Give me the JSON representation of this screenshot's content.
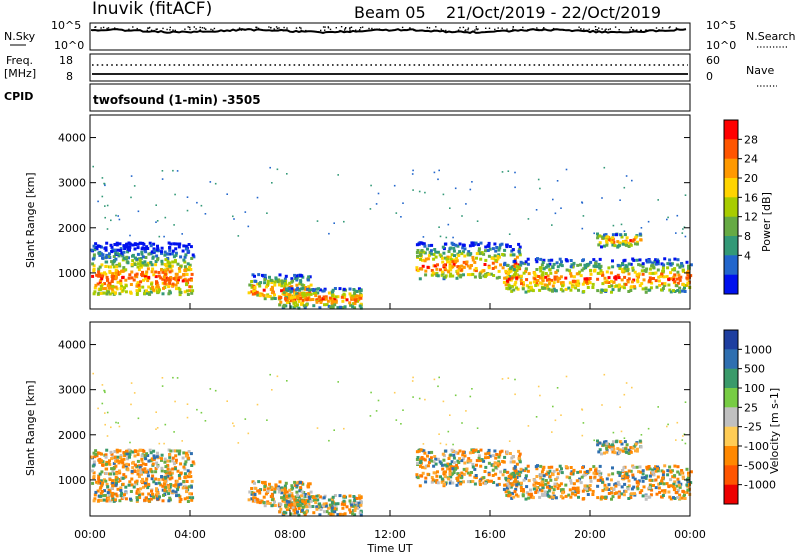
{
  "header": {
    "station": "Inuvik (fitACF)",
    "beam": "Beam 05",
    "date_range": "21/Oct/2019 - 22/Oct/2019"
  },
  "chart_data": [
    {
      "type": "line",
      "left_label": "N.Sky",
      "right_label": "N.Search",
      "left_ticks": [
        "10^5",
        "10^0"
      ],
      "right_ticks": [
        "10^5",
        "10^0"
      ]
    },
    {
      "type": "scatter",
      "left_label": "Freq.",
      "left_unit": "[MHz]",
      "right_label": "Nave",
      "left_ticks": [
        "18",
        "8"
      ],
      "right_ticks": [
        "60",
        "0"
      ],
      "cpid_label": "CPID",
      "program_label": "twofsound (1-min) -3505"
    },
    {
      "type": "heatmap",
      "ylabel": "Slant Range [km]",
      "y_ticks": [
        "4000",
        "3000",
        "2000",
        "1000"
      ],
      "ylim": [
        200,
        4500
      ],
      "colorbar_label": "Power [dB]",
      "colorbar_ticks": [
        "28",
        "24",
        "20",
        "16",
        "12",
        "8",
        "4"
      ],
      "colorbar_colors": [
        "#ff0000",
        "#ff5500",
        "#ff9900",
        "#ffd400",
        "#a8cc00",
        "#66aa44",
        "#339977",
        "#2266cc",
        "#0011ee"
      ]
    },
    {
      "type": "heatmap",
      "ylabel": "Slant Range [km]",
      "y_ticks": [
        "4000",
        "3000",
        "2000",
        "1000"
      ],
      "ylim": [
        200,
        4500
      ],
      "colorbar_label": "Velocity [m s-1]",
      "colorbar_ticks": [
        "1000",
        "500",
        "100",
        "25",
        "-25",
        "-100",
        "-500",
        "-1000"
      ],
      "colorbar_colors": [
        "#1f3fa0",
        "#2f6fb0",
        "#3a9a6a",
        "#77cc44",
        "#c0c0c0",
        "#ffcc55",
        "#ff8800",
        "#ff5500",
        "#ee0000"
      ]
    }
  ],
  "x_axis": {
    "ticks": [
      "00:00",
      "04:00",
      "08:00",
      "12:00",
      "16:00",
      "20:00",
      "00:00"
    ],
    "label": "Time UT"
  }
}
